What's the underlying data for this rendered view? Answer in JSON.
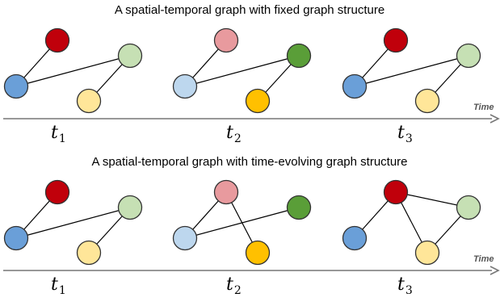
{
  "colors": {
    "dark_red": "#c0000b",
    "pink": "#e89a9e",
    "dark_green": "#5a9e38",
    "light_green": "#c6e0b4",
    "blue": "#6a9fd8",
    "light_blue": "#bdd7ee",
    "light_yellow": "#ffe699",
    "orange": "#ffc000"
  },
  "panels": [
    {
      "title": "A spatial-temporal graph with fixed graph structure",
      "time_label": "Time",
      "snapshots": [
        {
          "t_main": "t",
          "t_sub": "1",
          "node_colors": {
            "top": "dark_red",
            "right": "light_green",
            "left": "blue",
            "bottom": "light_yellow"
          },
          "edges": [
            [
              "top",
              "left"
            ],
            [
              "left",
              "right"
            ],
            [
              "right",
              "bottom"
            ]
          ]
        },
        {
          "t_main": "t",
          "t_sub": "2",
          "node_colors": {
            "top": "pink",
            "right": "dark_green",
            "left": "light_blue",
            "bottom": "orange"
          },
          "edges": [
            [
              "top",
              "left"
            ],
            [
              "left",
              "right"
            ],
            [
              "right",
              "bottom"
            ]
          ]
        },
        {
          "t_main": "t",
          "t_sub": "3",
          "node_colors": {
            "top": "dark_red",
            "right": "light_green",
            "left": "blue",
            "bottom": "light_yellow"
          },
          "edges": [
            [
              "top",
              "left"
            ],
            [
              "left",
              "right"
            ],
            [
              "right",
              "bottom"
            ]
          ]
        }
      ]
    },
    {
      "title": "A spatial-temporal graph with time-evolving graph structure",
      "time_label": "Time",
      "snapshots": [
        {
          "t_main": "t",
          "t_sub": "1",
          "node_colors": {
            "top": "dark_red",
            "right": "light_green",
            "left": "blue",
            "bottom": "light_yellow"
          },
          "edges": [
            [
              "top",
              "left"
            ],
            [
              "left",
              "right"
            ],
            [
              "right",
              "bottom"
            ]
          ]
        },
        {
          "t_main": "t",
          "t_sub": "2",
          "node_colors": {
            "top": "pink",
            "right": "dark_green",
            "left": "light_blue",
            "bottom": "orange"
          },
          "edges": [
            [
              "top",
              "left"
            ],
            [
              "left",
              "right"
            ],
            [
              "top",
              "bottom"
            ]
          ]
        },
        {
          "t_main": "t",
          "t_sub": "3",
          "node_colors": {
            "top": "dark_red",
            "right": "light_green",
            "left": "blue",
            "bottom": "light_yellow"
          },
          "edges": [
            [
              "top",
              "right"
            ],
            [
              "top",
              "bottom"
            ],
            [
              "top",
              "left"
            ],
            [
              "bottom",
              "right"
            ]
          ]
        }
      ]
    }
  ]
}
